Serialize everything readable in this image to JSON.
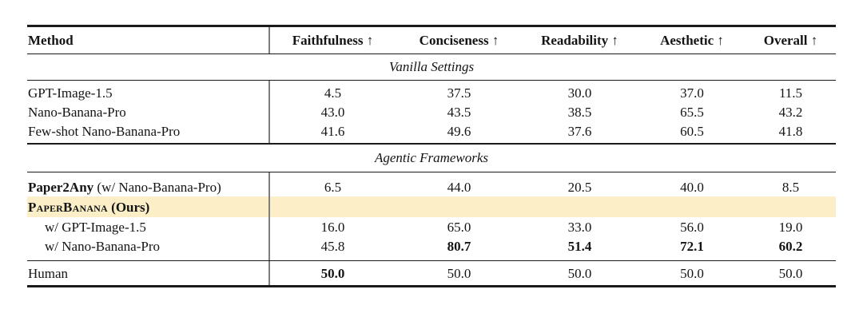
{
  "table": {
    "header": {
      "method": "Method",
      "metrics": [
        "Faithfulness ↑",
        "Conciseness ↑",
        "Readability ↑",
        "Aesthetic ↑",
        "Overall ↑"
      ]
    },
    "sections": {
      "vanilla": "Vanilla Settings",
      "agentic": "Agentic Frameworks"
    },
    "vanilla_rows": [
      {
        "label": "GPT-Image-1.5",
        "cells": [
          "4.5",
          "37.5",
          "30.0",
          "37.0",
          "11.5"
        ]
      },
      {
        "label": "Nano-Banana-Pro",
        "cells": [
          "43.0",
          "43.5",
          "38.5",
          "65.5",
          "43.2"
        ]
      },
      {
        "label": "Few-shot Nano-Banana-Pro",
        "cells": [
          "41.6",
          "49.6",
          "37.6",
          "60.5",
          "41.8"
        ]
      }
    ],
    "agentic_rows": {
      "paper2any": {
        "label_bold": "Paper2Any",
        "label_rest": " (w/ Nano-Banana-Pro)",
        "cells": [
          "6.5",
          "44.0",
          "20.5",
          "40.0",
          "8.5"
        ]
      },
      "paperbanana": {
        "label_smallcaps": "PaperBanana",
        "label_rest": " (Ours)"
      },
      "ours_gpt": {
        "label": "w/ GPT-Image-1.5",
        "cells": [
          "16.0",
          "65.0",
          "33.0",
          "56.0",
          "19.0"
        ]
      },
      "ours_nbp": {
        "label": "w/ Nano-Banana-Pro",
        "cells": [
          "45.8",
          "80.7",
          "51.4",
          "72.1",
          "60.2"
        ]
      }
    },
    "human_row": {
      "label": "Human",
      "cells": [
        "50.0",
        "50.0",
        "50.0",
        "50.0",
        "50.0"
      ]
    },
    "colors": {
      "highlight": "#FCEFC7",
      "rule": "#1A1A1A",
      "divider": "#7D7D7D"
    }
  },
  "chart_data": {
    "type": "table",
    "columns": [
      "Method",
      "Faithfulness ↑",
      "Conciseness ↑",
      "Readability ↑",
      "Aesthetic ↑",
      "Overall ↑"
    ],
    "section_headers": [
      "Vanilla Settings",
      "Agentic Frameworks"
    ],
    "rows": [
      {
        "section": "Vanilla Settings",
        "method": "GPT-Image-1.5",
        "values": [
          4.5,
          37.5,
          30.0,
          37.0,
          11.5
        ]
      },
      {
        "section": "Vanilla Settings",
        "method": "Nano-Banana-Pro",
        "values": [
          43.0,
          43.5,
          38.5,
          65.5,
          43.2
        ]
      },
      {
        "section": "Vanilla Settings",
        "method": "Few-shot Nano-Banana-Pro",
        "values": [
          41.6,
          49.6,
          37.6,
          60.5,
          41.8
        ]
      },
      {
        "section": "Agentic Frameworks",
        "method": "Paper2Any (w/ Nano-Banana-Pro)",
        "values": [
          6.5,
          44.0,
          20.5,
          40.0,
          8.5
        ]
      },
      {
        "section": "Agentic Frameworks",
        "method": "PaperBanana (Ours)",
        "values": [],
        "highlighted": true
      },
      {
        "section": "Agentic Frameworks",
        "method": "w/ GPT-Image-1.5",
        "values": [
          16.0,
          65.0,
          33.0,
          56.0,
          19.0
        ]
      },
      {
        "section": "Agentic Frameworks",
        "method": "w/ Nano-Banana-Pro",
        "values": [
          45.8,
          80.7,
          51.4,
          72.1,
          60.2
        ],
        "bold_value_indices": [
          1,
          2,
          3,
          4
        ]
      },
      {
        "section": "",
        "method": "Human",
        "values": [
          50.0,
          50.0,
          50.0,
          50.0,
          50.0
        ],
        "bold_value_indices": [
          0
        ]
      }
    ]
  }
}
